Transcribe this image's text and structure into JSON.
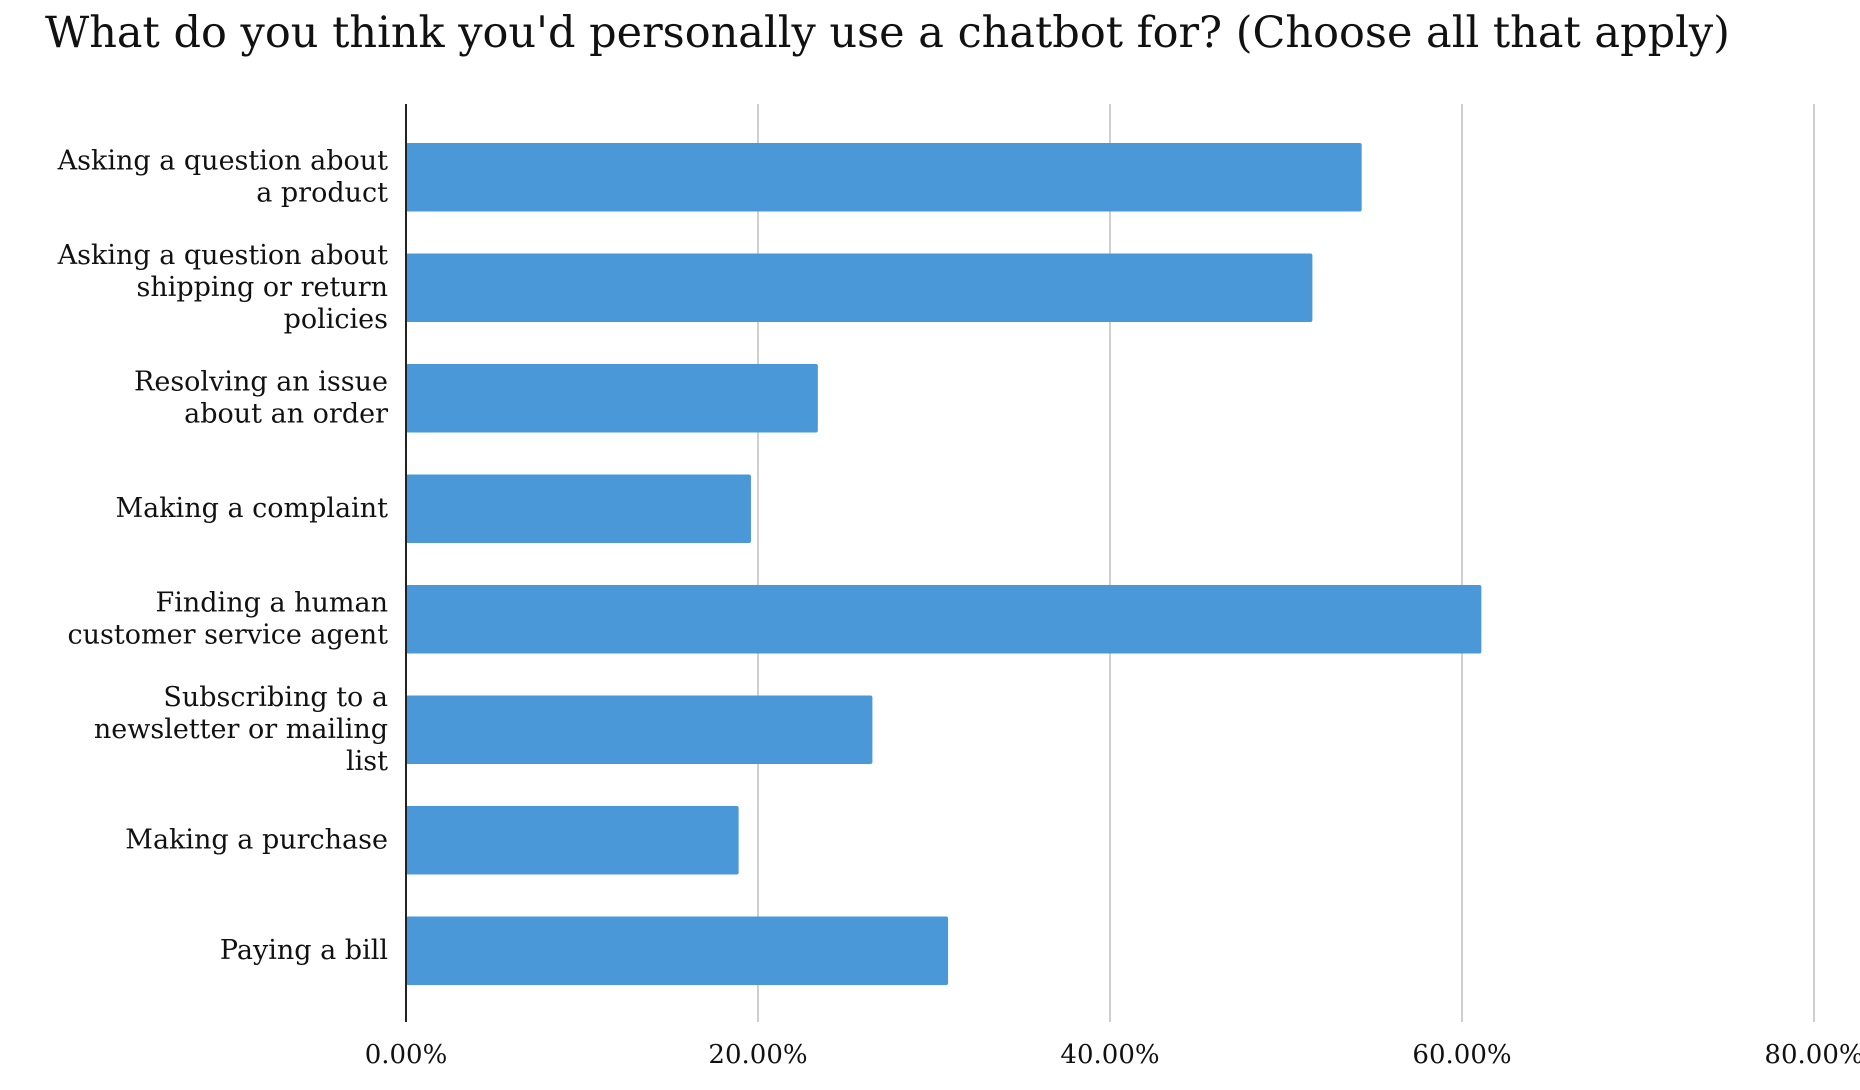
{
  "chart_data": {
    "type": "hbar",
    "title": "What do you think you'd personally use a chatbot for? (Choose all that apply)",
    "categories": [
      "Asking a question about a product",
      "Asking a question about shipping or return policies",
      "Resolving an issue about an order",
      "Making a complaint",
      "Finding a human customer service agent",
      "Subscribing to a newsletter or mailing list",
      "Making a purchase",
      "Paying a bill"
    ],
    "values": [
      54.3,
      51.5,
      23.4,
      19.6,
      61.1,
      26.5,
      18.9,
      30.8
    ],
    "color": "#4a98d8",
    "xlim": [
      0,
      80
    ],
    "xticks": [
      {
        "value": 0,
        "label": "0.00%"
      },
      {
        "value": 20,
        "label": "20.00%"
      },
      {
        "value": 40,
        "label": "40.00%"
      },
      {
        "value": 60,
        "label": "60.00%"
      },
      {
        "value": 80,
        "label": "80.00%"
      }
    ],
    "grid": true
  }
}
